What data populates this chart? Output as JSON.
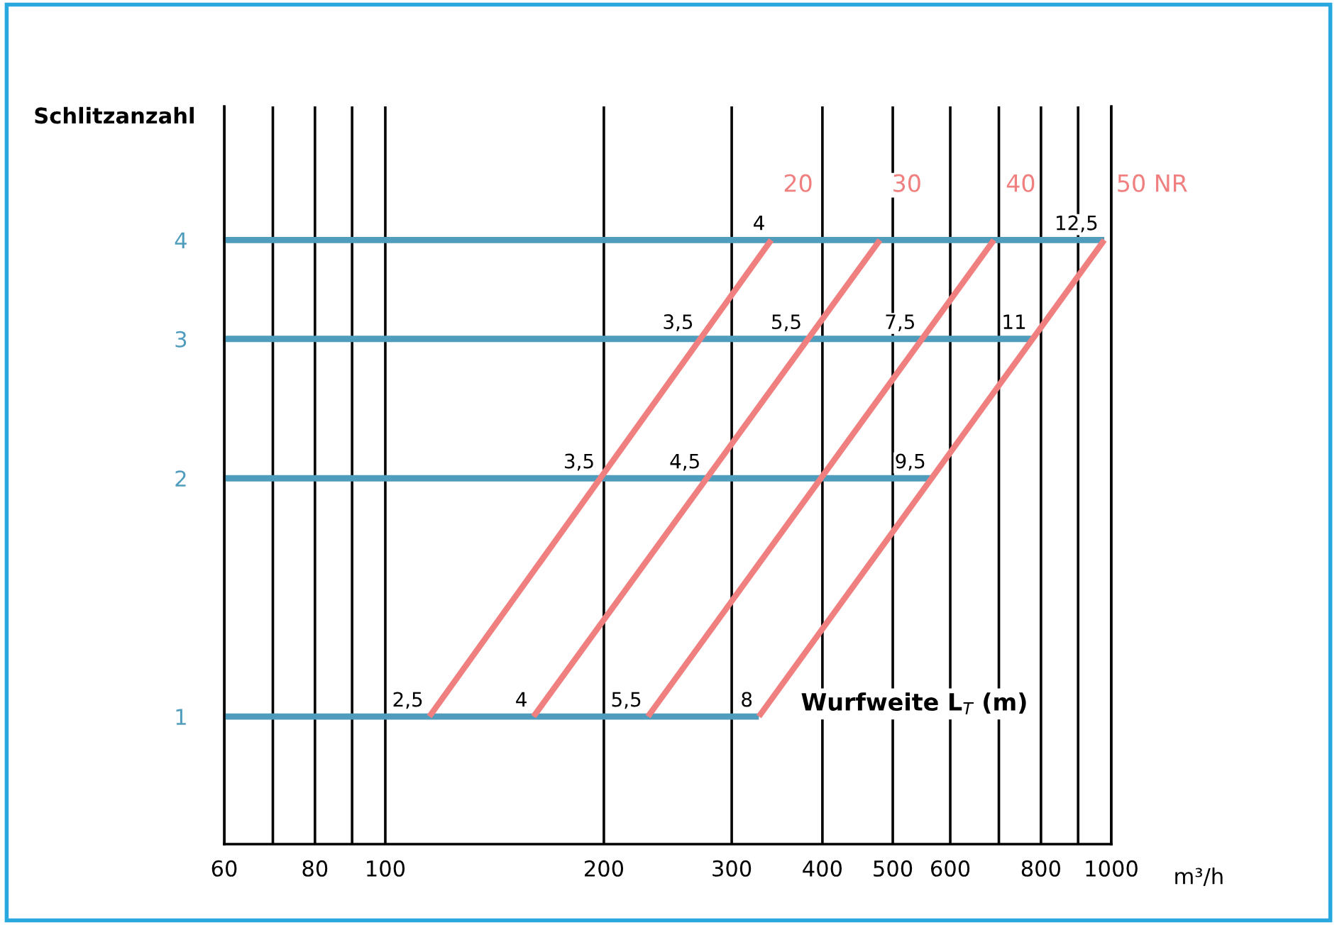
{
  "chart_data": {
    "type": "line",
    "ylabel": "Schlitzanzahl",
    "xlabel": "m³/h",
    "log": "xy",
    "grid": "x",
    "legend": false,
    "marker": "none",
    "line_style": "solid",
    "xlim": [
      60,
      1000
    ],
    "ylim": [
      0.69,
      5.9
    ],
    "xticks": [
      60,
      {
        "value": 70,
        "label": null
      },
      80,
      {
        "value": 90,
        "label": null
      },
      100,
      200,
      300,
      400,
      500,
      600,
      {
        "value": 700,
        "label": null
      },
      800,
      {
        "value": 900,
        "label": null
      },
      1000
    ],
    "yticks": [
      1,
      2,
      3,
      4
    ],
    "series": [
      {
        "color": "#4f9cbd",
        "x": [
          60,
          327
        ],
        "values": [
          1,
          1
        ]
      },
      {
        "color": "#4f9cbd",
        "x": [
          60,
          566
        ],
        "values": [
          2,
          2
        ]
      },
      {
        "color": "#4f9cbd",
        "x": [
          60,
          779
        ],
        "values": [
          3,
          3
        ]
      },
      {
        "color": "#4f9cbd",
        "x": [
          60,
          978
        ],
        "values": [
          4,
          4
        ]
      },
      {
        "name": "20",
        "color": "#f08080",
        "x": [
          115,
          340
        ],
        "values": [
          1,
          4
        ]
      },
      {
        "name": "30",
        "color": "#f08080",
        "x": [
          160,
          480
        ],
        "values": [
          1,
          4
        ]
      },
      {
        "name": "40",
        "color": "#f08080",
        "x": [
          230,
          689
        ],
        "values": [
          1,
          4
        ]
      },
      {
        "name": "50 NR",
        "color": "#f08080",
        "x": [
          327,
          978
        ],
        "values": [
          1,
          4
        ]
      }
    ],
    "annotations": [
      {
        "text": "2,5",
        "x": 115,
        "y": 1
      },
      {
        "text": "4",
        "x": 160,
        "y": 1
      },
      {
        "text": "5,5",
        "x": 230,
        "y": 1
      },
      {
        "text": "8",
        "x": 327,
        "y": 1
      },
      {
        "text": "3,5",
        "x": 198,
        "y": 2
      },
      {
        "text": "4,5",
        "x": 277,
        "y": 2
      },
      {
        "text": "9,5",
        "x": 566,
        "y": 2
      },
      {
        "text": "3,5",
        "x": 271,
        "y": 3
      },
      {
        "text": "5,5",
        "x": 382,
        "y": 3
      },
      {
        "text": "7,5",
        "x": 548,
        "y": 3
      },
      {
        "text": "11",
        "x": 779,
        "y": 3
      },
      {
        "text": "4",
        "x": 340,
        "y": 4
      },
      {
        "text": "12,5",
        "x": 978,
        "y": 4
      },
      "Wurfweite L$_{T}$ (m)"
    ]
  }
}
